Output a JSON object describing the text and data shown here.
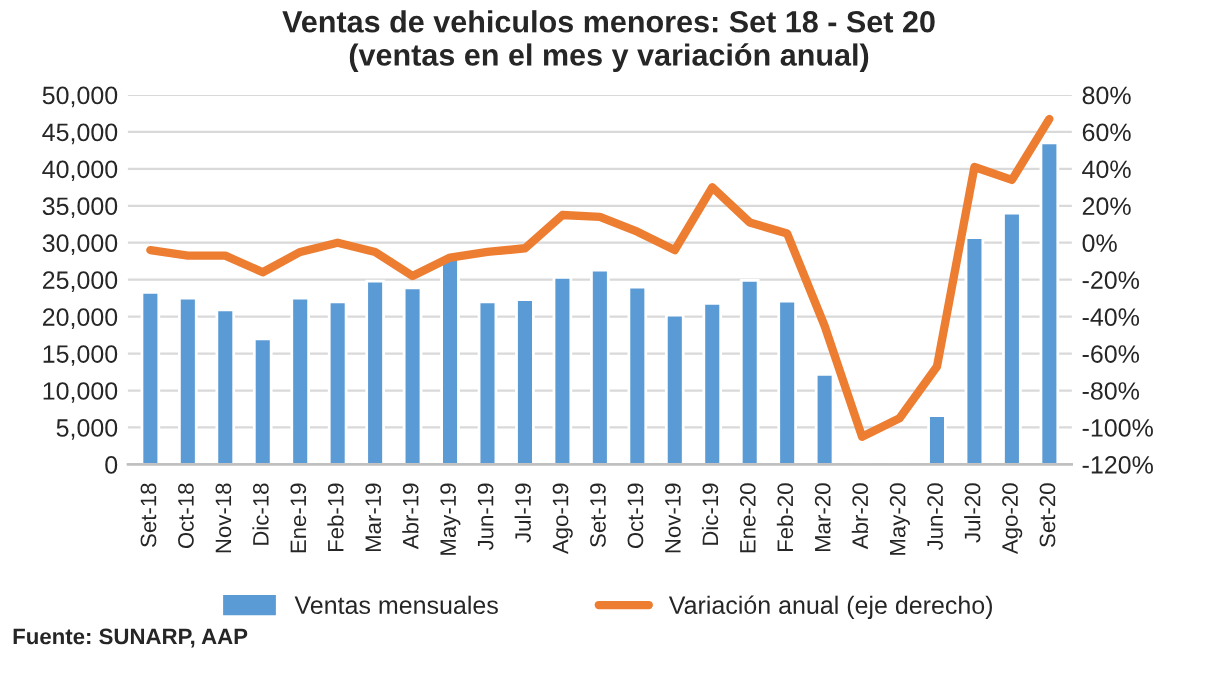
{
  "chart_data": {
    "type": "bar",
    "title": "Ventas de vehiculos menores: Set 18 - Set 20\n(ventas en el mes y variación anual)",
    "categories": [
      "Set-18",
      "Oct-18",
      "Nov-18",
      "Dic-18",
      "Ene-19",
      "Feb-19",
      "Mar-19",
      "Abr-19",
      "May-19",
      "Jun-19",
      "Jul-19",
      "Ago-19",
      "Set-19",
      "Oct-19",
      "Nov-19",
      "Dic-19",
      "Ene-20",
      "Feb-20",
      "Mar-20",
      "Abr-20",
      "May-20",
      "Jun-20",
      "Jul-20",
      "Ago-20",
      "Set-20"
    ],
    "series": [
      {
        "name": "Ventas mensuales",
        "color": "#5b9bd5",
        "values": [
          23300,
          22500,
          20900,
          17000,
          22500,
          22000,
          24800,
          23900,
          28000,
          22000,
          22300,
          25300,
          26300,
          24000,
          20200,
          21800,
          24900,
          22100,
          12200,
          100,
          100,
          6600,
          30700,
          34000,
          43500
        ]
      },
      {
        "name": "Variación anual (eje derecho)",
        "type": "line",
        "axis": "y2",
        "color": "#ed7d31",
        "values": [
          -4,
          -7,
          -7,
          -16,
          -5,
          0,
          -5,
          -18,
          -8,
          -5,
          -3,
          15,
          14,
          6,
          -4,
          30,
          11,
          5,
          -45,
          -105,
          -95,
          -67,
          41,
          34,
          67
        ]
      }
    ],
    "ylim": [
      0,
      50000
    ],
    "yticks": [
      0,
      {
        "value": 5000,
        "label": "5,000"
      },
      {
        "value": 10000,
        "label": "10,000"
      },
      {
        "value": 15000,
        "label": "15,000"
      },
      {
        "value": 20000,
        "label": "20,000"
      },
      {
        "value": 25000,
        "label": "25,000"
      },
      {
        "value": 30000,
        "label": "30,000"
      },
      {
        "value": 35000,
        "label": "35,000"
      },
      {
        "value": 40000,
        "label": "40,000"
      },
      {
        "value": 45000,
        "label": "45,000"
      },
      {
        "value": 50000,
        "label": "50,000"
      }
    ],
    "y2lim": [
      -120,
      80
    ],
    "y2ticks": [
      {
        "value": -120,
        "label": "-120%"
      },
      {
        "value": -100,
        "label": "-100%"
      },
      {
        "value": -80,
        "label": "-80%"
      },
      {
        "value": -60,
        "label": "-60%"
      },
      {
        "value": -40,
        "label": "-40%"
      },
      {
        "value": -20,
        "label": "-20%"
      },
      {
        "value": 0,
        "label": "0%"
      },
      {
        "value": 20,
        "label": "20%"
      },
      {
        "value": 40,
        "label": "40%"
      },
      {
        "value": 60,
        "label": "60%"
      },
      {
        "value": 80,
        "label": "80%"
      }
    ],
    "grid": "y",
    "legend": "bottom",
    "annotations": [
      "Fuente: SUNARP, AAP"
    ]
  }
}
